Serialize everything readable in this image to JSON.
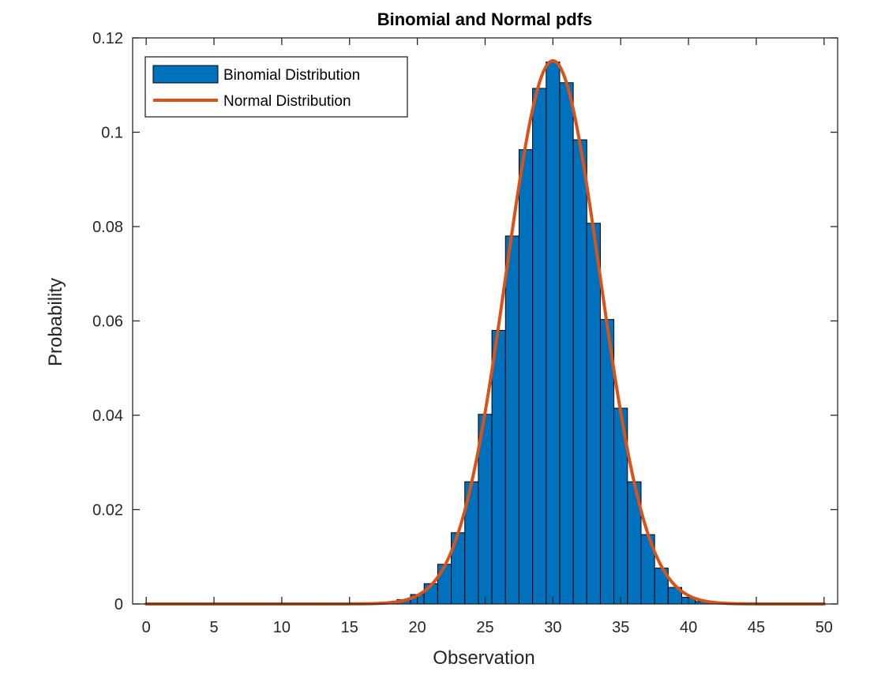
{
  "chart_data": {
    "type": "bar",
    "title": "Binomial and Normal pdfs",
    "xlabel": "Observation",
    "ylabel": "Probability",
    "xlim": [
      -1,
      51
    ],
    "ylim": [
      0,
      0.12
    ],
    "xticks": [
      0,
      5,
      10,
      15,
      20,
      25,
      30,
      35,
      40,
      45,
      50
    ],
    "yticks": [
      0,
      0.02,
      0.04,
      0.06,
      0.08,
      0.1,
      0.12
    ],
    "xtick_labels": [
      "0",
      "5",
      "10",
      "15",
      "20",
      "25",
      "30",
      "35",
      "40",
      "45",
      "50"
    ],
    "ytick_labels": [
      "0",
      "0.02",
      "0.04",
      "0.06",
      "0.08",
      "0.1",
      "0.12"
    ],
    "legend_position": "top-left",
    "grid": false,
    "series": [
      {
        "name": "Binomial Distribution",
        "type": "bar",
        "color": "#0072BD",
        "x": [
          19,
          20,
          21,
          22,
          23,
          24,
          25,
          26,
          27,
          28,
          29,
          30,
          31,
          32,
          33,
          34,
          35,
          36,
          37,
          38,
          39,
          40,
          41
        ],
        "values": [
          0.0009,
          0.002,
          0.0043,
          0.0084,
          0.0151,
          0.0259,
          0.0402,
          0.058,
          0.078,
          0.0963,
          0.1093,
          0.1149,
          0.1105,
          0.0984,
          0.0807,
          0.0603,
          0.0415,
          0.0259,
          0.0147,
          0.0076,
          0.0035,
          0.0014,
          0.0005
        ]
      },
      {
        "name": "Normal Distribution",
        "type": "line",
        "color": "#D95319",
        "mean": 30,
        "std": 3.4641,
        "x_range": [
          0,
          50
        ]
      }
    ]
  },
  "legend": {
    "items": [
      {
        "label": "Binomial Distribution",
        "color": "#0072BD",
        "kind": "patch"
      },
      {
        "label": "Normal Distribution",
        "color": "#D95319",
        "kind": "line"
      }
    ]
  }
}
